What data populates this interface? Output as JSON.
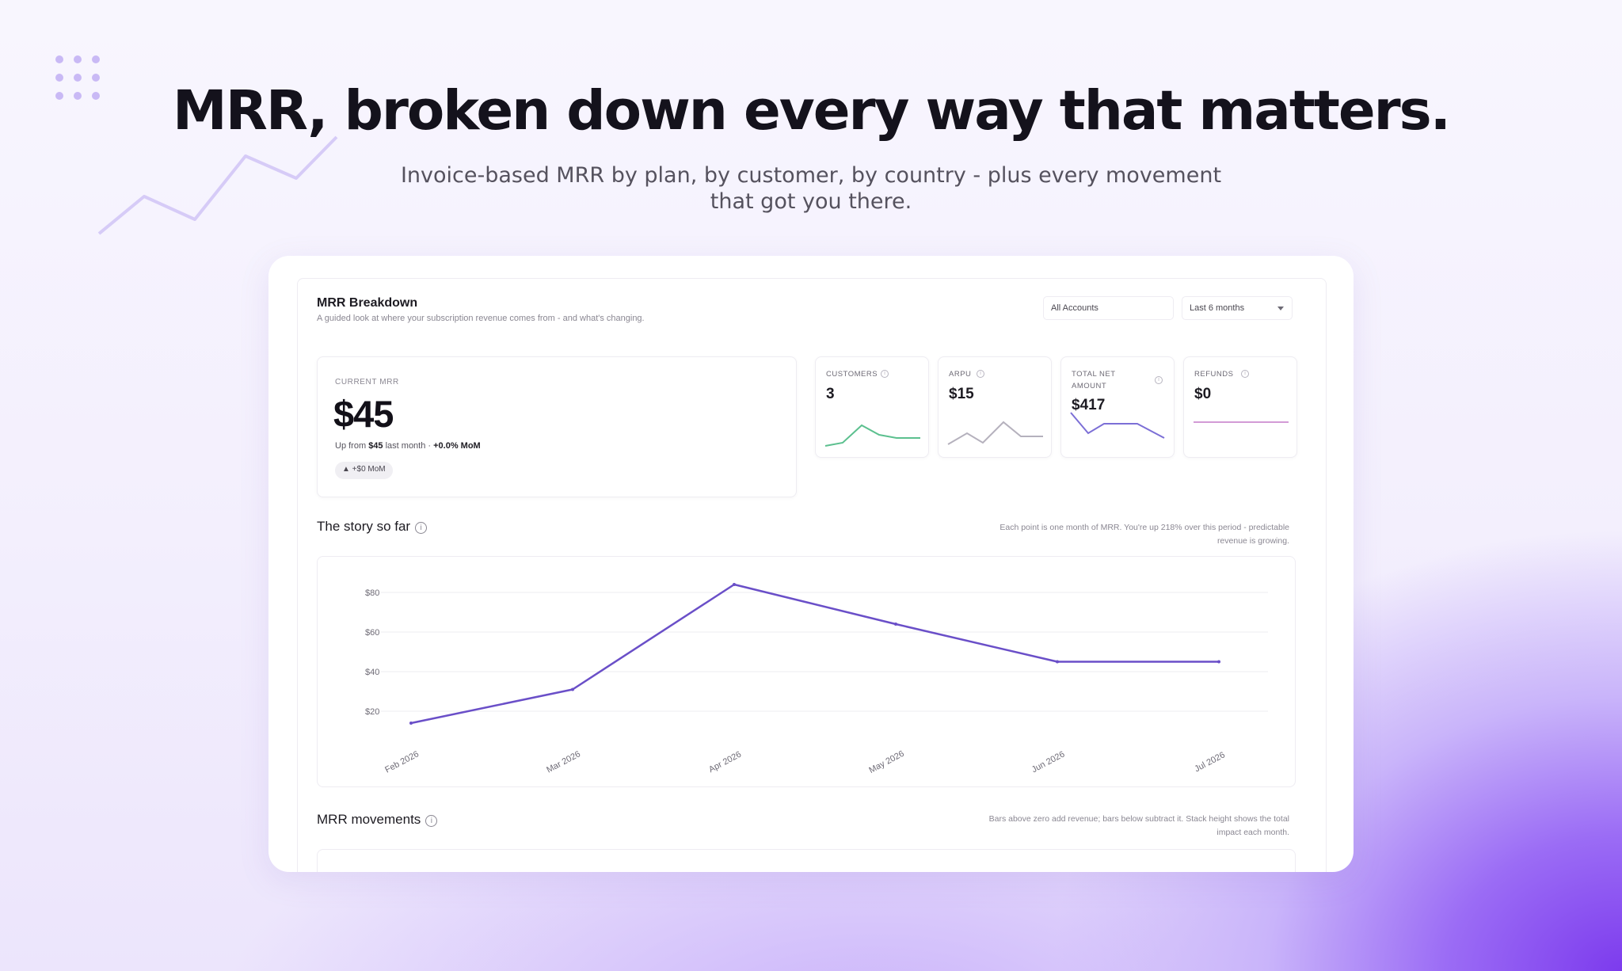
{
  "hero": {
    "title": "MRR, broken down every way that matters.",
    "subtitle": "Invoice-based MRR by plan, by customer, by country -  plus every movement that got you there."
  },
  "panel": {
    "title": "MRR Breakdown",
    "description": "A guided look at where your subscription revenue comes from - and what's changing.",
    "filters": {
      "accounts": "All Accounts",
      "period": "Last 6 months"
    }
  },
  "current_mrr": {
    "label": "CURRENT MRR",
    "value": "$45",
    "note_prefix": "Up from ",
    "note_amount": "$45",
    "note_mid": " last month · ",
    "note_change": "+0.0% MoM",
    "badge": "▲ +$0 MoM"
  },
  "kpis": [
    {
      "label": "CUSTOMERS",
      "value": "3",
      "color": "#5cc08f"
    },
    {
      "label": "ARPU",
      "value": "$15",
      "color": "#b5b1bd"
    },
    {
      "label": "TOTAL NET AMOUNT",
      "value": "$417",
      "color": "#7c6fd6"
    },
    {
      "label": "REFUNDS",
      "value": "$0",
      "color": "#d39bd6"
    }
  ],
  "story": {
    "title": "The story so far",
    "note": "Each point is one month of MRR. You're up 218% over this period - predictable revenue is growing."
  },
  "movements": {
    "title": "MRR movements",
    "note": "Bars above zero add revenue; bars below subtract it. Stack height shows the total impact each month."
  },
  "colors": {
    "accent": "#6a4fc8",
    "grid": "#eeeef2"
  },
  "chart_data": {
    "type": "line",
    "title": "",
    "xlabel": "",
    "ylabel": "",
    "categories": [
      "Feb 2026",
      "Mar 2026",
      "Apr 2026",
      "May 2026",
      "Jun 2026",
      "Jul 2026"
    ],
    "values": [
      14,
      31,
      84,
      64,
      45,
      45
    ],
    "y_ticks": [
      "$20",
      "$40",
      "$60",
      "$80"
    ],
    "ylim": [
      0,
      90
    ],
    "grid": true
  }
}
